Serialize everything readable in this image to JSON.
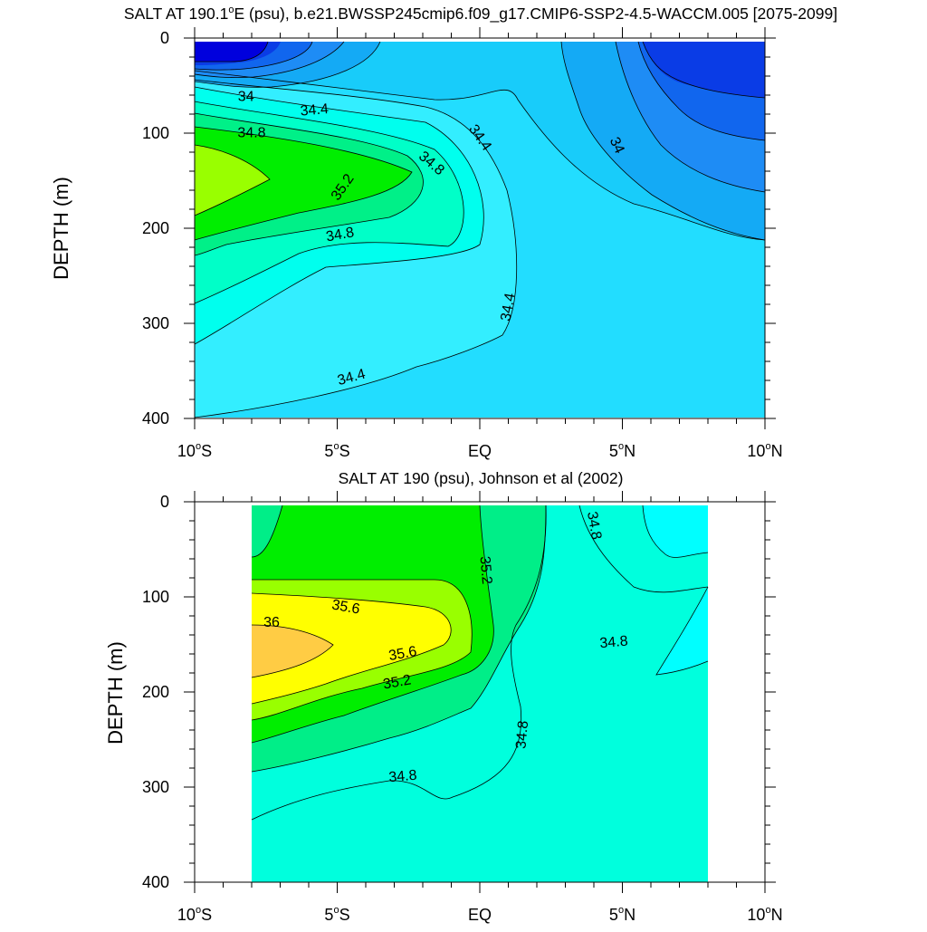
{
  "figure": {
    "panels": [
      {
        "title_parts": [
          "SALT AT 190.1",
          "o",
          "E (psu), b.e21.BWSSP245cmip6.f09_g17.CMIP6-SSP2-4.5-WACCM.005 [2075-2099]"
        ],
        "ylabel": "DEPTH (m)",
        "xticks": [
          {
            "value": -10,
            "label": "10",
            "sup": "o",
            "suffix": "S"
          },
          {
            "value": -5,
            "label": "5",
            "sup": "o",
            "suffix": "S"
          },
          {
            "value": 0,
            "label": "EQ",
            "sup": "",
            "suffix": ""
          },
          {
            "value": 5,
            "label": "5",
            "sup": "o",
            "suffix": "N"
          },
          {
            "value": 10,
            "label": "10",
            "sup": "o",
            "suffix": "N"
          }
        ],
        "yticks": [
          0,
          100,
          200,
          300,
          400
        ],
        "contour_labels": [
          {
            "text": "34",
            "lat": -8.2,
            "depth": 62,
            "rot": 0
          },
          {
            "text": "34.4",
            "lat": -5.8,
            "depth": 76,
            "rot": -5
          },
          {
            "text": "34.8",
            "lat": -8.0,
            "depth": 100,
            "rot": 0
          },
          {
            "text": "34.4",
            "lat": 0.0,
            "depth": 105,
            "rot": 55
          },
          {
            "text": "34",
            "lat": 4.8,
            "depth": 113,
            "rot": 65
          },
          {
            "text": "34.8",
            "lat": -1.7,
            "depth": 132,
            "rot": 40
          },
          {
            "text": "35.2",
            "lat": -4.8,
            "depth": 157,
            "rot": -55
          },
          {
            "text": "34.8",
            "lat": -4.9,
            "depth": 207,
            "rot": -10
          },
          {
            "text": "34.4",
            "lat": 1.0,
            "depth": 283,
            "rot": -80
          },
          {
            "text": "34.4",
            "lat": -4.5,
            "depth": 357,
            "rot": -15
          }
        ]
      },
      {
        "title": "SALT AT 190 (psu), Johnson et al (2002)",
        "ylabel": "DEPTH (m)",
        "xticks": [
          {
            "value": -10,
            "label": "10",
            "sup": "o",
            "suffix": "S"
          },
          {
            "value": -5,
            "label": "5",
            "sup": "o",
            "suffix": "S"
          },
          {
            "value": 0,
            "label": "EQ",
            "sup": "",
            "suffix": ""
          },
          {
            "value": 5,
            "label": "5",
            "sup": "o",
            "suffix": "N"
          },
          {
            "value": 10,
            "label": "10",
            "sup": "o",
            "suffix": "N"
          }
        ],
        "yticks": [
          0,
          100,
          200,
          300,
          400
        ],
        "contour_labels": [
          {
            "text": "34.8",
            "lat": 4.0,
            "depth": 25,
            "rot": 80
          },
          {
            "text": "35.2",
            "lat": 0.2,
            "depth": 72,
            "rot": 85
          },
          {
            "text": "35.6",
            "lat": -4.7,
            "depth": 111,
            "rot": 10
          },
          {
            "text": "36",
            "lat": -7.3,
            "depth": 127,
            "rot": 0
          },
          {
            "text": "35.6",
            "lat": -2.7,
            "depth": 160,
            "rot": -10
          },
          {
            "text": "34.8",
            "lat": 4.7,
            "depth": 148,
            "rot": -5
          },
          {
            "text": "35.2",
            "lat": -2.9,
            "depth": 190,
            "rot": -10
          },
          {
            "text": "34.8",
            "lat": 1.5,
            "depth": 245,
            "rot": -85
          },
          {
            "text": "34.8",
            "lat": -2.7,
            "depth": 289,
            "rot": -5
          }
        ]
      }
    ]
  },
  "chart_data": [
    {
      "type": "heatmap",
      "subtype": "filled-contour",
      "title": "SALT AT 190.1°E (psu), b.e21.BWSSP245cmip6.f09_g17.CMIP6-SSP2-4.5-WACCM.005 [2075-2099]",
      "xlabel": "",
      "ylabel": "DEPTH (m)",
      "xlim": [
        -10,
        10
      ],
      "ylim": [
        400,
        0
      ],
      "x_tick_labels": [
        "10°S",
        "5°S",
        "EQ",
        "5°N",
        "10°N"
      ],
      "y_tick_labels": [
        "0",
        "100",
        "200",
        "300",
        "400"
      ],
      "y_inverted": true,
      "data_lat_range": [
        -10,
        10
      ],
      "data_depth_range": [
        5,
        400
      ],
      "contour_levels": [
        33.4,
        33.6,
        33.8,
        34.0,
        34.2,
        34.4,
        34.6,
        34.8,
        35.0,
        35.2,
        35.4
      ],
      "contour_line_labels": [
        "34",
        "34.4",
        "34.8",
        "34.4",
        "34",
        "34.8",
        "35.2",
        "34.8",
        "34.4",
        "34.4"
      ],
      "colors": {
        "lt_33.4": "#0000dd",
        "33.4": "#0a3ce6",
        "33.6": "#1166ee",
        "33.8": "#1e8cf5",
        "34.0": "#14aaf5",
        "34.2": "#18ccfa",
        "34.4": "#22ddff",
        "34.6": "#33eeff",
        "34.8": "#00ffee",
        "35.0": "#00ffc8",
        "35.2": "#00f088",
        "35.4": "#00ee00",
        "gt_35.4": "#99ff00"
      }
    },
    {
      "type": "heatmap",
      "subtype": "filled-contour",
      "title": "SALT AT 190 (psu), Johnson et al (2002)",
      "xlabel": "",
      "ylabel": "DEPTH (m)",
      "xlim": [
        -10,
        10
      ],
      "ylim": [
        400,
        0
      ],
      "x_tick_labels": [
        "10°S",
        "5°S",
        "EQ",
        "5°N",
        "10°N"
      ],
      "y_tick_labels": [
        "0",
        "100",
        "200",
        "300",
        "400"
      ],
      "y_inverted": true,
      "data_lat_range": [
        -8,
        8
      ],
      "data_depth_range": [
        5,
        400
      ],
      "contour_levels": [
        34.8,
        35.0,
        35.2,
        35.4,
        35.6,
        35.8,
        36.0
      ],
      "contour_line_labels": [
        "34.8",
        "35.2",
        "35.6",
        "36",
        "35.6",
        "34.8",
        "35.2",
        "34.8",
        "34.8"
      ],
      "colors": {
        "lt_34.8": "#00ffff",
        "34.8": "#00ffdd",
        "35.0": "#00ee88",
        "35.2": "#00ee00",
        "35.4": "#99ff00",
        "35.6": "#ffff00",
        "35.8": "#ffcc44"
      }
    }
  ]
}
